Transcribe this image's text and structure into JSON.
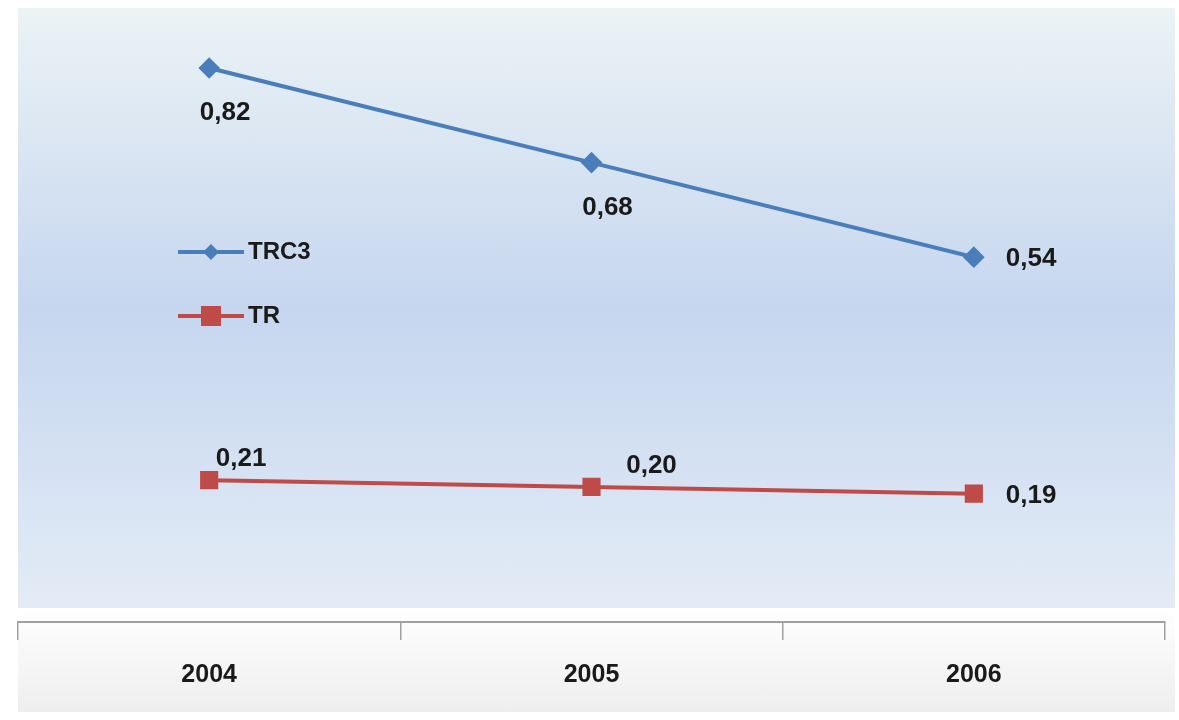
{
  "chart_data": {
    "type": "line",
    "categories": [
      "2004",
      "2005",
      "2006"
    ],
    "legend": "left",
    "series": [
      {
        "name": "TRC3",
        "color": "#4a7ebb",
        "marker": "diamond",
        "values": [
          0.82,
          0.68,
          0.54
        ],
        "value_labels": [
          "0,82",
          "0,68",
          "0,54"
        ]
      },
      {
        "name": "TR",
        "color": "#be4b48",
        "marker": "square",
        "values": [
          0.21,
          0.2,
          0.19
        ],
        "value_labels": [
          "0,21",
          "0,20",
          "0,19"
        ]
      }
    ]
  }
}
